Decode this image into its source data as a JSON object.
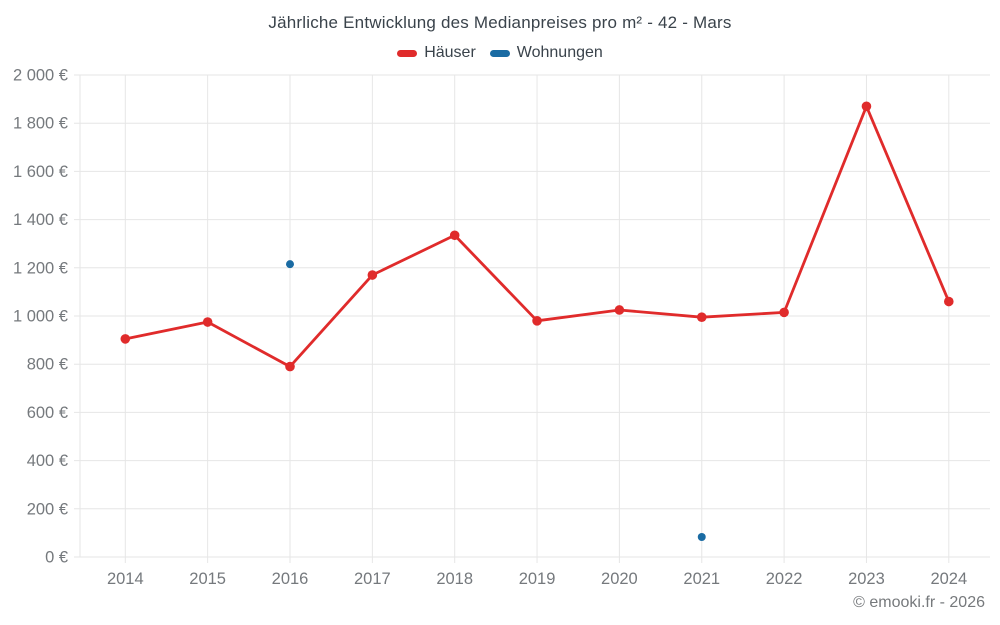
{
  "page": {
    "footer": "© emooki.fr - 2026"
  },
  "legend": [
    {
      "key": "haeuser",
      "label": "Häuser",
      "color": "#e02b2b"
    },
    {
      "key": "wohnungen",
      "label": "Wohnungen",
      "color": "#1a6ba3"
    }
  ],
  "colors": {
    "grid": "#e6e6e6",
    "axis_labels": "#75797d",
    "title_text": "#3a434b",
    "haeuser_red": "#e02b2b",
    "wohnungen_blue": "#1a6ba3"
  },
  "chart_data": {
    "type": "line",
    "title": "Jährliche Entwicklung des Medianpreises pro m² - 42 - Mars",
    "categories": [
      "2014",
      "2015",
      "2016",
      "2017",
      "2018",
      "2019",
      "2020",
      "2021",
      "2022",
      "2023",
      "2024"
    ],
    "series": [
      {
        "name": "Häuser",
        "key": "haeuser",
        "style": "line-with-markers",
        "color": "#e02b2b",
        "values": [
          905,
          975,
          790,
          1170,
          1335,
          980,
          1025,
          995,
          1015,
          1870,
          1060
        ]
      },
      {
        "name": "Wohnungen",
        "key": "wohnungen",
        "style": "markers-only",
        "color": "#1a6ba3",
        "values": [
          null,
          null,
          1215,
          null,
          null,
          null,
          null,
          83,
          null,
          null,
          null
        ]
      }
    ],
    "xlabel": "",
    "ylabel": "",
    "ylim": [
      0,
      2000
    ],
    "ytick_values": [
      0,
      200,
      400,
      600,
      800,
      1000,
      1200,
      1400,
      1600,
      1800,
      2000
    ],
    "ytick_labels": [
      "0 €",
      "200 €",
      "400 €",
      "600 €",
      "800 €",
      "1 000 €",
      "1 200 €",
      "1 400 €",
      "1 600 €",
      "1 800 €",
      "2 000 €"
    ],
    "grid": true,
    "legend_position": "top",
    "currency_suffix": "€"
  }
}
